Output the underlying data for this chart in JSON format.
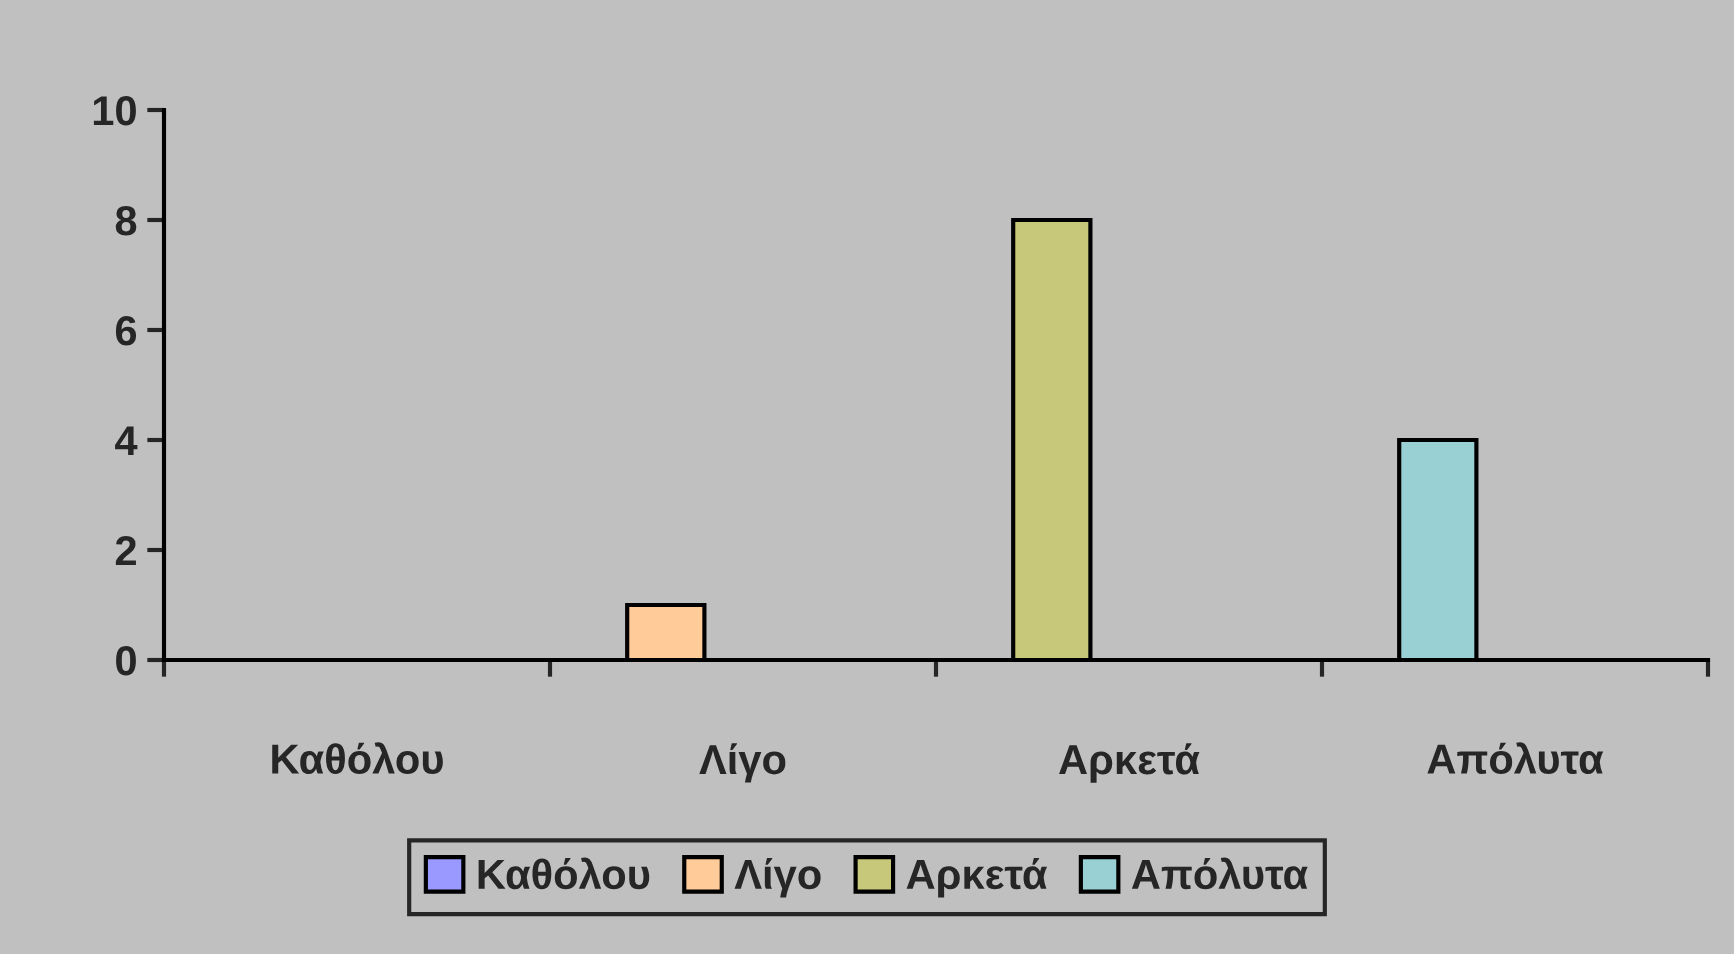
{
  "chart_data": {
    "type": "bar",
    "categories": [
      "Καθόλου",
      "Λίγο",
      "Αρκετά",
      "Απόλυτα"
    ],
    "series": [
      {
        "name": "Καθόλου",
        "color": "#9999ff",
        "values": [
          null,
          null,
          null,
          null
        ]
      },
      {
        "name": "Λίγο",
        "color": "#ffcc99",
        "values": [
          null,
          1,
          null,
          null
        ]
      },
      {
        "name": "Αρκετά",
        "color": "#c8c87a",
        "values": [
          null,
          null,
          8,
          null
        ]
      },
      {
        "name": "Απόλυτα",
        "color": "#99d0d4",
        "values": [
          null,
          null,
          null,
          4
        ]
      }
    ],
    "ylim": [
      0,
      10
    ],
    "yticks": [
      0,
      2,
      4,
      6,
      8,
      10
    ],
    "grid": false,
    "legend": "bottom"
  }
}
